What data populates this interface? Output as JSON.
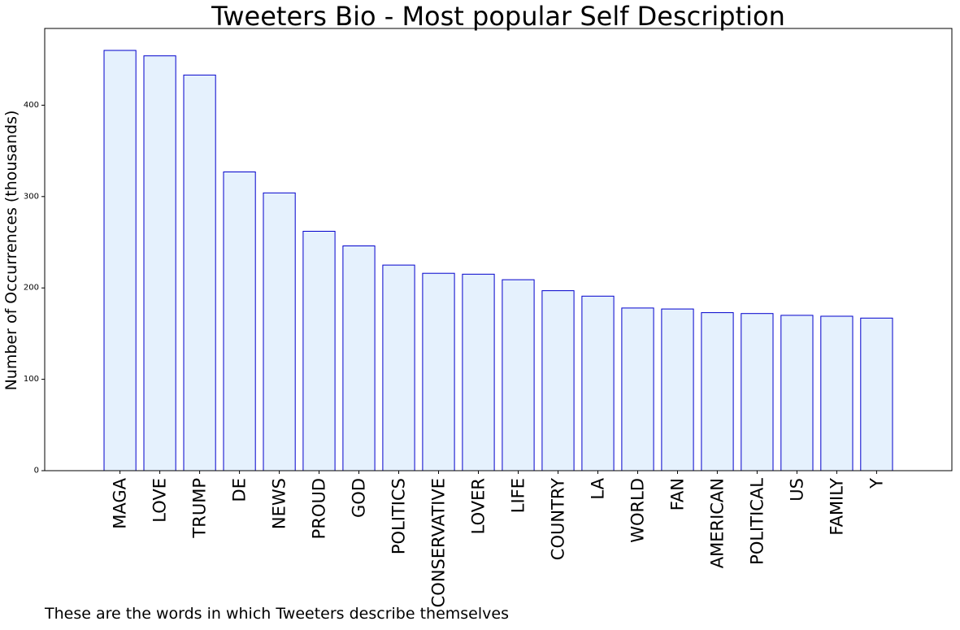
{
  "chart_data": {
    "type": "bar",
    "title": "Tweeters Bio - Most popular Self Description",
    "xlabel": "",
    "ylabel": "Number of Occurrences (thousands)",
    "caption": "These are the words in which Tweeters describe themselves",
    "categories": [
      "MAGA",
      "LOVE",
      "TRUMP",
      "DE",
      "NEWS",
      "PROUD",
      "GOD",
      "POLITICS",
      "CONSERVATIVE",
      "LOVER",
      "LIFE",
      "COUNTRY",
      "LA",
      "WORLD",
      "FAN",
      "AMERICAN",
      "POLITICAL",
      "US",
      "FAMILY",
      "Y"
    ],
    "values": [
      460,
      454,
      433,
      327,
      304,
      262,
      246,
      225,
      216,
      215,
      209,
      197,
      191,
      178,
      177,
      173,
      172,
      170,
      169,
      167
    ],
    "ylim": [
      0,
      484
    ],
    "yticks": [
      0,
      100,
      200,
      300,
      400
    ],
    "grid": false,
    "colors": {
      "bar_fill": "#e5f1fd",
      "bar_edge": "#0000cc",
      "axis": "#000000",
      "text": "#000000"
    }
  }
}
